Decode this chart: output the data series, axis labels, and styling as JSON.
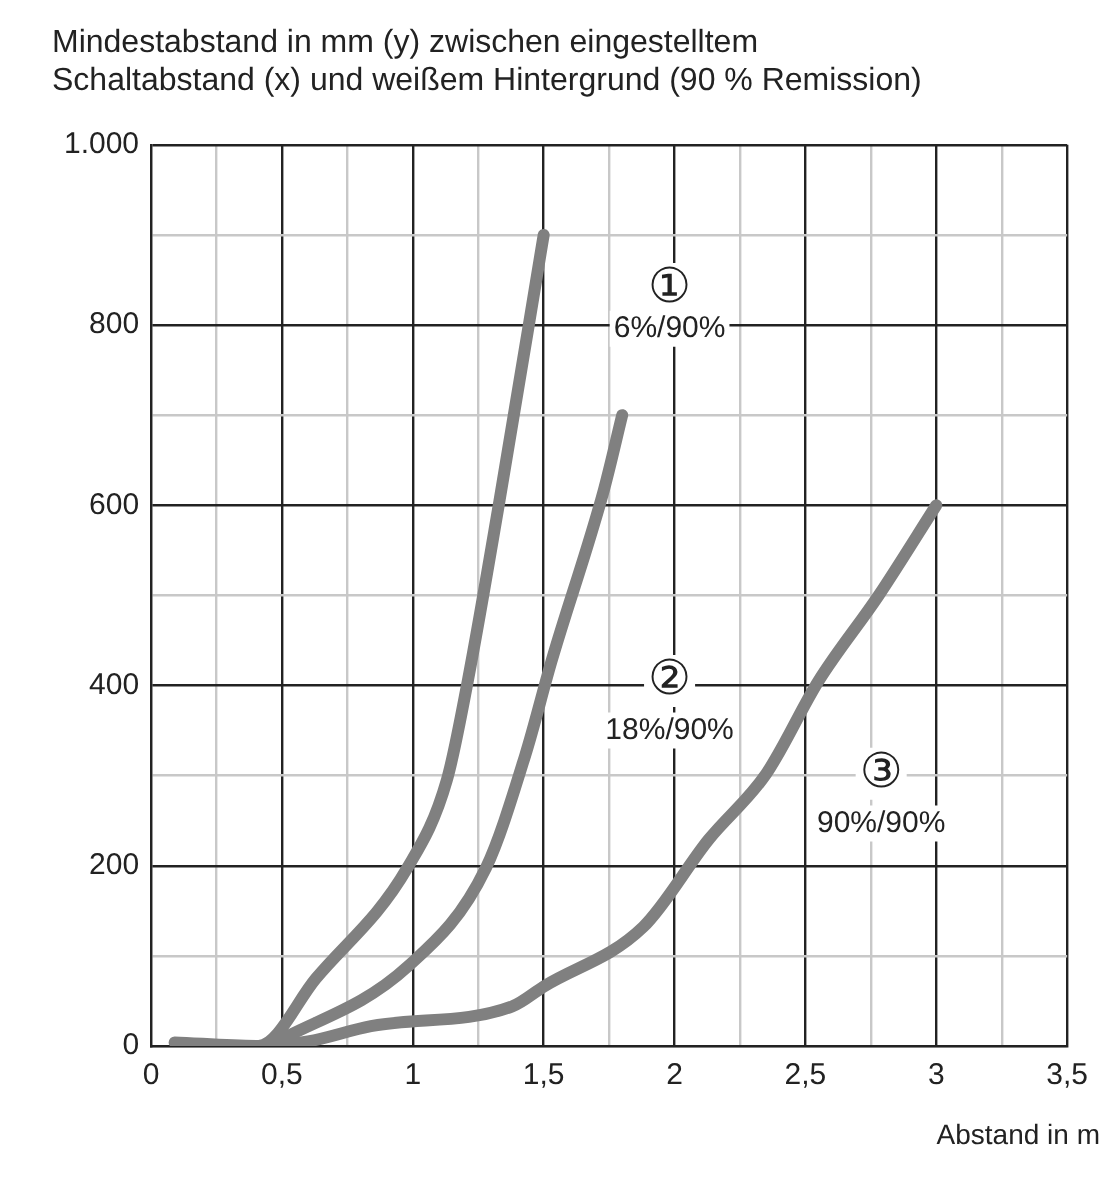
{
  "chart_data": {
    "type": "line",
    "title": [
      "Mindestabstand in mm (y) zwischen eingestelltem",
      "Schaltabstand (x) und weißem Hintergrund (90 % Remission)"
    ],
    "xlabel": "Abstand in m",
    "series": [
      {
        "color": "#808080",
        "x": [
          0.09,
          0.41,
          0.63,
          0.98,
          1.13,
          1.21,
          1.33,
          1.5
        ],
        "values": [
          4,
          0,
          75,
          198,
          295,
          405,
          603,
          900
        ]
      },
      {
        "color": "#808080",
        "x": [
          0.45,
          0.98,
          1.28,
          1.43,
          1.53,
          1.73,
          1.8
        ],
        "values": [
          0,
          88,
          198,
          323,
          427,
          617,
          700
        ]
      },
      {
        "color": "#808080",
        "x": [
          0.45,
          0.6,
          0.84,
          1.38,
          1.5,
          1.88,
          2.13,
          2.35,
          2.55,
          2.78,
          3.0
        ],
        "values": [
          0,
          5,
          22,
          44,
          66,
          132,
          229,
          302,
          405,
          500,
          600
        ]
      }
    ],
    "annotations": [
      "①",
      "6%/90%",
      "②",
      "18%/90%",
      "③",
      "90%/90%"
    ],
    "xlim": [
      0,
      3.5
    ],
    "xticks": [
      0,
      {
        "value": 0.25,
        "label": null
      },
      {
        "value": 0.5,
        "label": "0,5"
      },
      {
        "value": 0.75,
        "label": null
      },
      1,
      {
        "value": 1.25,
        "label": null
      },
      {
        "value": 1.5,
        "label": "1,5"
      },
      {
        "value": 1.75,
        "label": null
      },
      2,
      {
        "value": 2.25,
        "label": null
      },
      {
        "value": 2.5,
        "label": "2,5"
      },
      {
        "value": 2.75,
        "label": null
      },
      3,
      {
        "value": 3.25,
        "label": null
      },
      {
        "value": 3.5,
        "label": "3,5"
      }
    ],
    "ylim": [
      0,
      1000
    ],
    "yticks": [
      0,
      {
        "value": 100,
        "label": null
      },
      200,
      {
        "value": 300,
        "label": null
      },
      400,
      {
        "value": 500,
        "label": null
      },
      600,
      {
        "value": 700,
        "label": null
      },
      800,
      {
        "value": 900,
        "label": null
      },
      {
        "value": 1000,
        "label": "1.000"
      }
    ],
    "grid": true,
    "marker": "none",
    "line_style": "solid",
    "legend": false
  }
}
